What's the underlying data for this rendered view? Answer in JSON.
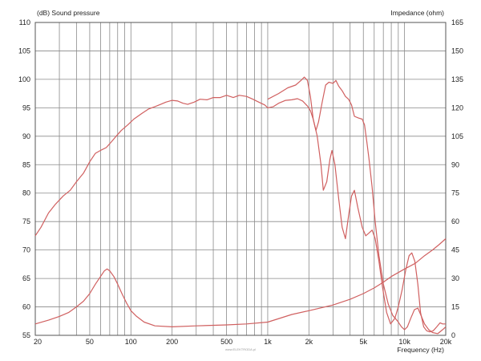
{
  "chart_data": {
    "type": "line",
    "xscale": "log",
    "xlim": [
      20,
      20000
    ],
    "ylim": [
      55,
      110
    ],
    "y2lim": [
      0,
      165
    ],
    "ylabel": "(dB)  Sound pressure",
    "y2label": "Impedance  (ohm)",
    "xlabel": "Frequency  (Hz)",
    "x_tick_labels": [
      {
        "value": 20,
        "label": "20"
      },
      {
        "value": 50,
        "label": "50"
      },
      {
        "value": 100,
        "label": "100"
      },
      {
        "value": 200,
        "label": "200"
      },
      {
        "value": 500,
        "label": "500"
      },
      {
        "value": 1000,
        "label": "1k"
      },
      {
        "value": 2000,
        "label": "2k"
      },
      {
        "value": 5000,
        "label": "5k"
      },
      {
        "value": 10000,
        "label": "10k"
      },
      {
        "value": 20000,
        "label": "20k"
      }
    ],
    "y_ticks": [
      55,
      60,
      65,
      70,
      75,
      80,
      85,
      90,
      95,
      100,
      105,
      110
    ],
    "y2_ticks": [
      0,
      15,
      30,
      45,
      60,
      75,
      90,
      105,
      120,
      135,
      150,
      165
    ],
    "grid": true,
    "series_color": "#d06060",
    "series": [
      {
        "axis": "left",
        "points": [
          [
            20,
            72.5
          ],
          [
            22,
            74
          ],
          [
            25,
            76.5
          ],
          [
            28,
            78
          ],
          [
            32,
            79.5
          ],
          [
            36,
            80.5
          ],
          [
            40,
            82
          ],
          [
            45,
            83.5
          ],
          [
            50,
            85.5
          ],
          [
            55,
            87
          ],
          [
            60,
            87.5
          ],
          [
            66,
            88
          ],
          [
            72,
            89
          ],
          [
            78,
            90
          ],
          [
            85,
            91
          ],
          [
            95,
            92
          ],
          [
            105,
            93
          ],
          [
            120,
            94
          ],
          [
            135,
            94.8
          ],
          [
            150,
            95.2
          ],
          [
            165,
            95.6
          ],
          [
            180,
            96
          ],
          [
            200,
            96.3
          ],
          [
            220,
            96.2
          ],
          [
            240,
            95.8
          ],
          [
            260,
            95.6
          ],
          [
            290,
            96
          ],
          [
            320,
            96.5
          ],
          [
            360,
            96.4
          ],
          [
            400,
            96.8
          ],
          [
            450,
            96.8
          ],
          [
            500,
            97.2
          ],
          [
            560,
            96.8
          ],
          [
            620,
            97.2
          ],
          [
            700,
            97
          ],
          [
            780,
            96.5
          ],
          [
            860,
            96
          ],
          [
            950,
            95.5
          ],
          [
            1000,
            95
          ],
          [
            1100,
            95.2
          ],
          [
            1200,
            95.8
          ],
          [
            1350,
            96.3
          ],
          [
            1500,
            96.4
          ],
          [
            1650,
            96.6
          ],
          [
            1800,
            96.2
          ],
          [
            1950,
            95.3
          ],
          [
            2050,
            94.5
          ],
          [
            2150,
            93
          ],
          [
            2300,
            90
          ],
          [
            2450,
            85
          ],
          [
            2550,
            80.5
          ],
          [
            2700,
            82
          ],
          [
            2850,
            86
          ],
          [
            2950,
            87.5
          ],
          [
            3100,
            85
          ],
          [
            3300,
            79
          ],
          [
            3500,
            74
          ],
          [
            3700,
            72
          ],
          [
            3900,
            76
          ],
          [
            4100,
            79.5
          ],
          [
            4300,
            80.5
          ],
          [
            4550,
            77.5
          ],
          [
            4900,
            74
          ],
          [
            5200,
            72.5
          ],
          [
            5500,
            73
          ],
          [
            5800,
            73.5
          ],
          [
            6100,
            72
          ],
          [
            6500,
            68
          ],
          [
            6900,
            63.5
          ],
          [
            7400,
            59
          ],
          [
            7900,
            57
          ],
          [
            8500,
            58
          ],
          [
            9000,
            60
          ],
          [
            9600,
            63
          ],
          [
            10200,
            66.5
          ],
          [
            10800,
            69
          ],
          [
            11300,
            69.5
          ],
          [
            11900,
            68
          ],
          [
            12500,
            64
          ],
          [
            13100,
            59
          ],
          [
            13800,
            56.5
          ],
          [
            14500,
            55.8
          ],
          [
            15300,
            55.6
          ],
          [
            16200,
            55.8
          ],
          [
            17200,
            56.5
          ],
          [
            18200,
            57.2
          ],
          [
            19000,
            57
          ],
          [
            20000,
            57
          ]
        ]
      },
      {
        "axis": "left",
        "points": [
          [
            1000,
            96.5
          ],
          [
            1200,
            97.5
          ],
          [
            1400,
            98.5
          ],
          [
            1600,
            99
          ],
          [
            1750,
            99.8
          ],
          [
            1850,
            100.4
          ],
          [
            1950,
            99.8
          ],
          [
            2050,
            97
          ],
          [
            2150,
            93
          ],
          [
            2250,
            91
          ],
          [
            2350,
            92.5
          ],
          [
            2500,
            96
          ],
          [
            2650,
            99
          ],
          [
            2800,
            99.5
          ],
          [
            3000,
            99.3
          ],
          [
            3150,
            99.8
          ],
          [
            3300,
            98.8
          ],
          [
            3500,
            98
          ],
          [
            3700,
            97
          ],
          [
            3900,
            96.5
          ],
          [
            4100,
            95.5
          ],
          [
            4300,
            93.5
          ],
          [
            4600,
            93.2
          ],
          [
            4900,
            93
          ],
          [
            5100,
            92
          ],
          [
            5300,
            89
          ],
          [
            5500,
            86
          ],
          [
            5800,
            81
          ],
          [
            6100,
            75
          ],
          [
            6500,
            69
          ],
          [
            7000,
            64
          ],
          [
            7600,
            60.5
          ],
          [
            8200,
            58.5
          ],
          [
            8900,
            57.5
          ],
          [
            9500,
            56.5
          ],
          [
            10000,
            56
          ],
          [
            10500,
            56.5
          ],
          [
            11100,
            58
          ],
          [
            11800,
            59.5
          ],
          [
            12500,
            59.8
          ],
          [
            13200,
            58.5
          ],
          [
            14000,
            57
          ],
          [
            15000,
            56
          ],
          [
            16000,
            55.5
          ],
          [
            17500,
            55.3
          ],
          [
            19000,
            56
          ],
          [
            20000,
            56.5
          ]
        ]
      },
      {
        "axis": "right",
        "points": [
          [
            20,
            6
          ],
          [
            25,
            8
          ],
          [
            30,
            10
          ],
          [
            35,
            12
          ],
          [
            40,
            15
          ],
          [
            45,
            18
          ],
          [
            50,
            22
          ],
          [
            55,
            27
          ],
          [
            60,
            31
          ],
          [
            64,
            34
          ],
          [
            67,
            35
          ],
          [
            70,
            34
          ],
          [
            75,
            31
          ],
          [
            80,
            27
          ],
          [
            86,
            22
          ],
          [
            93,
            17
          ],
          [
            100,
            13
          ],
          [
            110,
            10
          ],
          [
            125,
            7
          ],
          [
            150,
            5
          ],
          [
            200,
            4.5
          ],
          [
            300,
            5
          ],
          [
            500,
            5.5
          ],
          [
            700,
            6
          ],
          [
            1000,
            7
          ],
          [
            1500,
            11
          ],
          [
            2000,
            13
          ],
          [
            3000,
            16
          ],
          [
            4000,
            19
          ],
          [
            5000,
            22
          ],
          [
            6000,
            25
          ],
          [
            7000,
            28
          ],
          [
            8000,
            31
          ],
          [
            10000,
            35
          ],
          [
            12000,
            38
          ],
          [
            14000,
            42
          ],
          [
            16000,
            45
          ],
          [
            18000,
            48
          ],
          [
            20000,
            51
          ]
        ]
      }
    ]
  },
  "watermark": "www.ELEKTRODA.pl"
}
